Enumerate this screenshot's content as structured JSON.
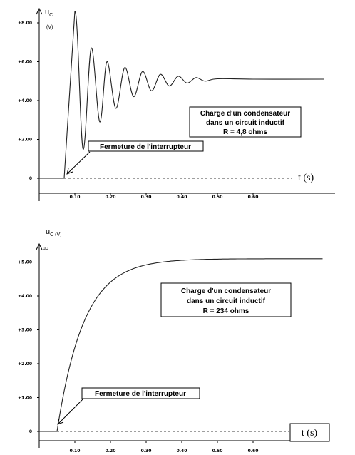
{
  "chart_data": [
    {
      "type": "line",
      "ylabel": "u",
      "ylabel_sub": "C",
      "yunit": "(V)",
      "yticks": [
        {
          "value": 0,
          "label": "0"
        },
        {
          "value": 2,
          "label": "+2.00"
        },
        {
          "value": 4,
          "label": "+4.00"
        },
        {
          "value": 6,
          "label": "+6.00"
        },
        {
          "value": 8,
          "label": "+8.00"
        }
      ],
      "xticks": [
        {
          "value": 0.1,
          "label": "0.10"
        },
        {
          "value": 0.2,
          "label": "0.20"
        },
        {
          "value": 0.3,
          "label": "0.30"
        },
        {
          "value": 0.4,
          "label": "0.40"
        },
        {
          "value": 0.5,
          "label": "0.50"
        },
        {
          "value": 0.6,
          "label": "0.60"
        }
      ],
      "xlabel": "t (s)",
      "xlim": [
        0,
        0.8
      ],
      "ylim": [
        0,
        9
      ],
      "switch_time": 0.07,
      "steady_value": 5.1,
      "curve_points": [
        [
          0,
          0
        ],
        [
          0.07,
          0
        ],
        [
          0.1,
          8.6
        ],
        [
          0.123,
          1.5
        ],
        [
          0.146,
          6.7
        ],
        [
          0.17,
          2.9
        ],
        [
          0.19,
          6.0
        ],
        [
          0.215,
          3.6
        ],
        [
          0.24,
          5.7
        ],
        [
          0.265,
          4.2
        ],
        [
          0.29,
          5.5
        ],
        [
          0.315,
          4.5
        ],
        [
          0.34,
          5.35
        ],
        [
          0.365,
          4.75
        ],
        [
          0.39,
          5.25
        ],
        [
          0.415,
          4.9
        ],
        [
          0.44,
          5.18
        ],
        [
          0.465,
          5.0
        ],
        [
          0.5,
          5.12
        ],
        [
          0.6,
          5.1
        ],
        [
          0.8,
          5.1
        ]
      ],
      "annotation": {
        "lines": [
          "Charge d'un condensateur",
          "dans un circuit inductif",
          "R = 4,8 ohms"
        ]
      },
      "switch_label": "Fermeture de l'interrupteur"
    },
    {
      "type": "line",
      "ylabel": "u",
      "ylabel_sub": "C (V)",
      "axis_tag": "uc",
      "yticks": [
        {
          "value": 0,
          "label": "0"
        },
        {
          "value": 1,
          "label": "+1.00"
        },
        {
          "value": 2,
          "label": "+2.00"
        },
        {
          "value": 3,
          "label": "+3.00"
        },
        {
          "value": 4,
          "label": "+4.00"
        },
        {
          "value": 5,
          "label": "+5.00"
        }
      ],
      "xticks": [
        {
          "value": 0.1,
          "label": "0.10"
        },
        {
          "value": 0.2,
          "label": "0.20"
        },
        {
          "value": 0.3,
          "label": "0.30"
        },
        {
          "value": 0.4,
          "label": "0.40"
        },
        {
          "value": 0.5,
          "label": "0.50"
        },
        {
          "value": 0.6,
          "label": "0.60"
        }
      ],
      "xlabel": "t (s)",
      "xlim": [
        0,
        0.8
      ],
      "ylim": [
        0,
        5.5
      ],
      "switch_time": 0.05,
      "steady_value": 5.1,
      "time_constant": 0.075,
      "annotation": {
        "lines": [
          "Charge d'un condensateur",
          "dans un circuit inductif",
          "R = 234 ohms"
        ]
      },
      "switch_label": "Fermeture de l'interrupteur"
    }
  ]
}
